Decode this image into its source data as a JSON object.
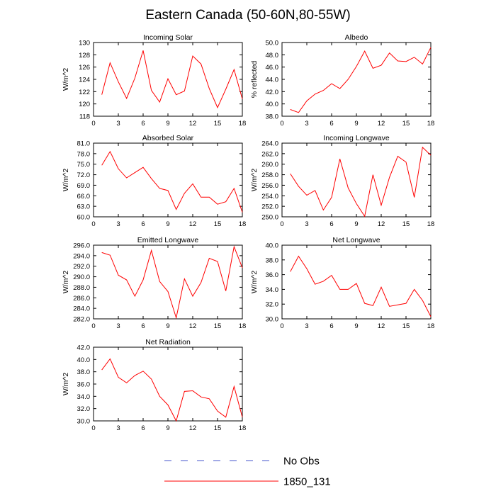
{
  "title": "Eastern Canada (50-60N,80-55W)",
  "colors": {
    "series": "#ff0000",
    "no_obs": "#4455cc",
    "axis": "#000000"
  },
  "legend": [
    {
      "label": "No Obs",
      "color": "#4455cc",
      "style": "dashed"
    },
    {
      "label": "1850_131",
      "color": "#ff0000",
      "style": "solid"
    }
  ],
  "chart_data": [
    {
      "type": "line",
      "title": "Incoming Solar",
      "ylabel": "W/m^2",
      "xlim": [
        0,
        18
      ],
      "ylim": [
        118,
        130
      ],
      "xticks": [
        0,
        3,
        6,
        9,
        12,
        15,
        18
      ],
      "yticks": [
        "118",
        "120",
        "122",
        "124",
        "126",
        "128",
        "130"
      ],
      "series": [
        {
          "x": [
            1,
            2,
            3,
            4,
            5,
            6,
            7,
            8,
            9,
            10,
            11,
            12,
            13,
            14,
            15,
            16,
            17,
            18
          ],
          "y": [
            121.5,
            126.7,
            123.6,
            120.9,
            124.2,
            128.7,
            122.2,
            120.3,
            124.1,
            121.5,
            122.1,
            127.8,
            126.5,
            122.5,
            119.4,
            122.4,
            125.6,
            120.8
          ]
        }
      ]
    },
    {
      "type": "line",
      "title": "Albedo",
      "ylabel": "% reflected",
      "xlim": [
        0,
        18
      ],
      "ylim": [
        38,
        50
      ],
      "xticks": [
        0,
        3,
        6,
        9,
        12,
        15,
        18
      ],
      "yticks": [
        "38.0",
        "40.0",
        "42.0",
        "44.0",
        "46.0",
        "48.0",
        "50.0"
      ],
      "series": [
        {
          "x": [
            1,
            2,
            3,
            4,
            5,
            6,
            7,
            8,
            9,
            10,
            11,
            12,
            13,
            14,
            15,
            16,
            17,
            18
          ],
          "y": [
            39.1,
            38.6,
            40.5,
            41.6,
            42.2,
            43.3,
            42.5,
            44.0,
            46.1,
            48.6,
            45.8,
            46.3,
            48.3,
            47.0,
            46.9,
            47.6,
            46.5,
            49.2
          ]
        }
      ]
    },
    {
      "type": "line",
      "title": "Absorbed Solar",
      "ylabel": "W/m^2",
      "xlim": [
        0,
        18
      ],
      "ylim": [
        60,
        81
      ],
      "xticks": [
        0,
        3,
        6,
        9,
        12,
        15,
        18
      ],
      "yticks": [
        "60.0",
        "63.0",
        "66.0",
        "69.0",
        "72.0",
        "75.0",
        "78.0",
        "81.0"
      ],
      "series": [
        {
          "x": [
            1,
            2,
            3,
            4,
            5,
            6,
            7,
            8,
            9,
            10,
            11,
            12,
            13,
            14,
            15,
            16,
            17,
            18
          ],
          "y": [
            74.7,
            78.6,
            73.7,
            71.1,
            72.6,
            74.1,
            70.9,
            68.1,
            67.5,
            62.1,
            66.7,
            69.4,
            65.6,
            65.6,
            63.6,
            64.3,
            68.1,
            61.3
          ]
        }
      ]
    },
    {
      "type": "line",
      "title": "Incoming Longwave",
      "ylabel": "W/m^2",
      "xlim": [
        0,
        18
      ],
      "ylim": [
        250,
        264
      ],
      "xticks": [
        0,
        3,
        6,
        9,
        12,
        15,
        18
      ],
      "yticks": [
        "250.0",
        "252.0",
        "254.0",
        "256.0",
        "258.0",
        "260.0",
        "262.0",
        "264.0"
      ],
      "series": [
        {
          "x": [
            1,
            2,
            3,
            4,
            5,
            6,
            7,
            8,
            9,
            10,
            11,
            12,
            13,
            14,
            15,
            16,
            17,
            18
          ],
          "y": [
            258.2,
            255.8,
            254.1,
            255.0,
            251.3,
            253.7,
            261.0,
            255.5,
            252.5,
            250.1,
            258.0,
            252.2,
            257.5,
            261.5,
            260.4,
            253.7,
            263.2,
            261.7
          ]
        }
      ]
    },
    {
      "type": "line",
      "title": "Emitted Longwave",
      "ylabel": "W/m^2",
      "xlim": [
        0,
        18
      ],
      "ylim": [
        282,
        296
      ],
      "xticks": [
        0,
        3,
        6,
        9,
        12,
        15,
        18
      ],
      "yticks": [
        "282.0",
        "284.0",
        "286.0",
        "288.0",
        "290.0",
        "292.0",
        "294.0",
        "296.0"
      ],
      "series": [
        {
          "x": [
            1,
            2,
            3,
            4,
            5,
            6,
            7,
            8,
            9,
            10,
            11,
            12,
            13,
            14,
            15,
            16,
            17,
            18
          ],
          "y": [
            294.6,
            294.1,
            290.3,
            289.4,
            286.3,
            289.4,
            295.0,
            289.1,
            287.2,
            282.2,
            289.6,
            286.3,
            288.9,
            293.5,
            292.9,
            287.3,
            295.7,
            291.7
          ]
        }
      ]
    },
    {
      "type": "line",
      "title": "Net Longwave",
      "ylabel": "W/m^2",
      "xlim": [
        0,
        18
      ],
      "ylim": [
        30,
        40
      ],
      "xticks": [
        0,
        3,
        6,
        9,
        12,
        15,
        18
      ],
      "yticks": [
        "30.0",
        "32.0",
        "34.0",
        "36.0",
        "38.0",
        "40.0"
      ],
      "series": [
        {
          "x": [
            1,
            2,
            3,
            4,
            5,
            6,
            7,
            8,
            9,
            10,
            11,
            12,
            13,
            14,
            15,
            16,
            17,
            18
          ],
          "y": [
            36.4,
            38.5,
            36.8,
            34.7,
            35.1,
            35.9,
            34.0,
            34.0,
            34.8,
            32.1,
            31.8,
            34.3,
            31.7,
            31.9,
            32.1,
            34.0,
            32.5,
            30.3
          ]
        }
      ]
    },
    {
      "type": "line",
      "title": "Net Radiation",
      "ylabel": "W/m^2",
      "xlim": [
        0,
        18
      ],
      "ylim": [
        30,
        42
      ],
      "xticks": [
        0,
        3,
        6,
        9,
        12,
        15,
        18
      ],
      "yticks": [
        "30.0",
        "32.0",
        "34.0",
        "36.0",
        "38.0",
        "40.0",
        "42.0"
      ],
      "series": [
        {
          "x": [
            1,
            2,
            3,
            4,
            5,
            6,
            7,
            8,
            9,
            10,
            11,
            12,
            13,
            14,
            15,
            16,
            17,
            18
          ],
          "y": [
            38.3,
            40.1,
            37.1,
            36.2,
            37.4,
            38.1,
            36.8,
            34.0,
            32.6,
            30.0,
            34.8,
            34.9,
            33.9,
            33.6,
            31.6,
            30.6,
            35.6,
            30.6
          ]
        }
      ]
    }
  ]
}
